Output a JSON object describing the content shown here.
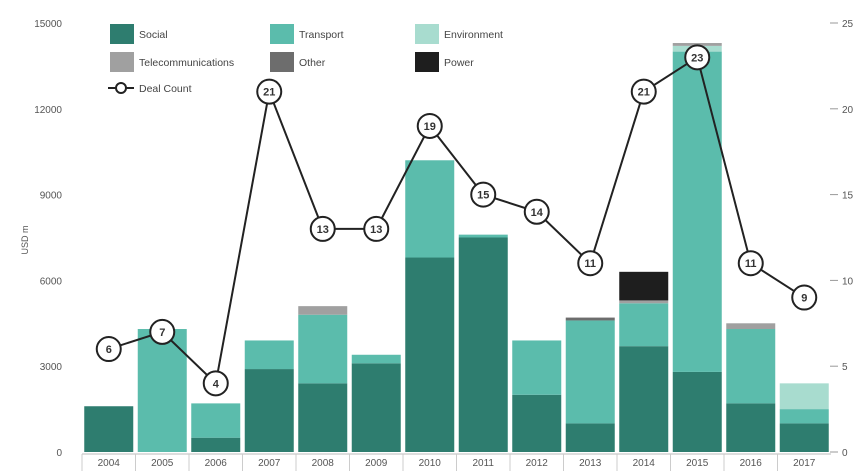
{
  "chart_data": {
    "type": "bar",
    "subtype": "stacked bar with line overlay (dual axis)",
    "categories": [
      "2004",
      "2005",
      "2006",
      "2007",
      "2008",
      "2009",
      "2010",
      "2011",
      "2012",
      "2013",
      "2014",
      "2015",
      "2016",
      "2017"
    ],
    "ylabel": "USD m",
    "ylim": [
      0,
      15000
    ],
    "y_ticks": [
      "0",
      "3000",
      "6000",
      "9000",
      "12000",
      "15000"
    ],
    "y2lim": [
      0,
      25
    ],
    "y2_ticks": [
      "0",
      "5",
      "10",
      "15",
      "20",
      "25"
    ],
    "legend_position": "top-left",
    "grid": false,
    "series": [
      {
        "name": "Social",
        "color": "#2e7d6f",
        "values": [
          1600,
          0,
          500,
          2900,
          2400,
          3100,
          6800,
          7500,
          2000,
          1000,
          3700,
          2800,
          1700,
          1000
        ]
      },
      {
        "name": "Transport",
        "color": "#5bbcac",
        "values": [
          0,
          4300,
          1200,
          1000,
          2400,
          300,
          3400,
          100,
          1900,
          3600,
          1500,
          11200,
          2600,
          500
        ]
      },
      {
        "name": "Environment",
        "color": "#a8dccf",
        "values": [
          0,
          0,
          0,
          0,
          0,
          0,
          0,
          0,
          0,
          0,
          0,
          200,
          0,
          900
        ]
      },
      {
        "name": "Telecommunications",
        "color": "#a0a0a0",
        "values": [
          0,
          0,
          0,
          0,
          300,
          0,
          0,
          0,
          0,
          0,
          100,
          100,
          200,
          0
        ]
      },
      {
        "name": "Other",
        "color": "#6d6d6d",
        "values": [
          0,
          0,
          0,
          0,
          0,
          0,
          0,
          0,
          0,
          100,
          0,
          0,
          0,
          0
        ]
      },
      {
        "name": "Power",
        "color": "#1e1e1e",
        "values": [
          0,
          0,
          0,
          0,
          0,
          0,
          0,
          0,
          0,
          0,
          1000,
          0,
          0,
          0
        ]
      }
    ],
    "line": {
      "name": "Deal Count",
      "axis": "right",
      "color": "#222222",
      "values": [
        6,
        7,
        4,
        21,
        13,
        13,
        19,
        15,
        14,
        11,
        21,
        23,
        11,
        9
      ]
    }
  }
}
